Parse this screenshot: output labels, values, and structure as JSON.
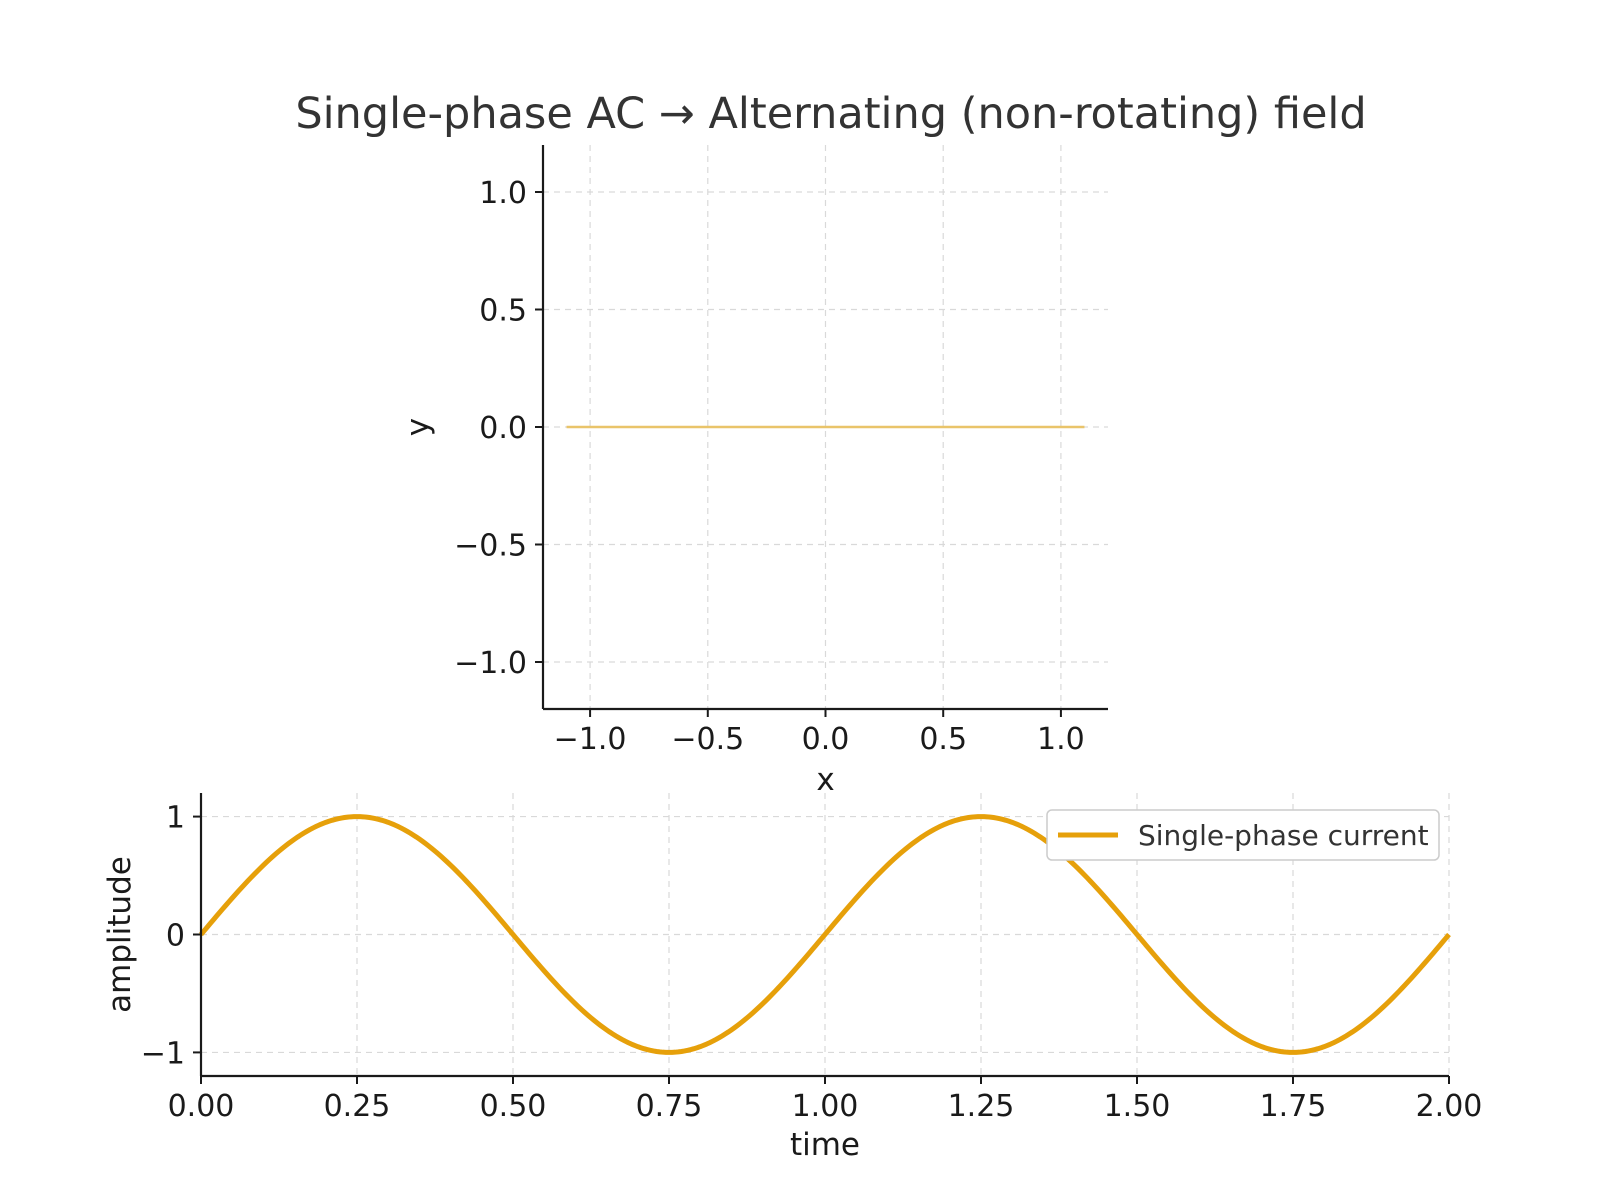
{
  "title": "Single-phase AC → Alternating (non-rotating) field",
  "colors": {
    "series": "#E6A00A",
    "field": "#E9C46A",
    "axis": "#1a1a1a",
    "grid": "#d9d9d9"
  },
  "chart_data": [
    {
      "type": "line",
      "xlabel": "x",
      "ylabel": "y",
      "xlim": [
        -1.2,
        1.2
      ],
      "ylim": [
        -1.2,
        1.2
      ],
      "xticks": [
        -1.0,
        -0.5,
        0.0,
        0.5,
        1.0
      ],
      "xtick_labels": [
        "−1.0",
        "−0.5",
        "0.0",
        "0.5",
        "1.0"
      ],
      "yticks": [
        -1.0,
        -0.5,
        0.0,
        0.5,
        1.0
      ],
      "ytick_labels": [
        "−1.0",
        "−0.5",
        "0.0",
        "0.5",
        "1.0"
      ],
      "grid": true,
      "series": [
        {
          "x": [
            -1.1,
            1.1
          ],
          "y": [
            0.0,
            0.0
          ]
        }
      ]
    },
    {
      "type": "line",
      "xlabel": "time",
      "ylabel": "amplitude",
      "xlim": [
        0.0,
        2.0
      ],
      "ylim": [
        -1.2,
        1.2
      ],
      "xticks": [
        0.0,
        0.25,
        0.5,
        0.75,
        1.0,
        1.25,
        1.5,
        1.75,
        2.0
      ],
      "xtick_labels": [
        "0.00",
        "0.25",
        "0.50",
        "0.75",
        "1.00",
        "1.25",
        "1.50",
        "1.75",
        "2.00"
      ],
      "yticks": [
        -1,
        0,
        1
      ],
      "ytick_labels": [
        "−1",
        "0",
        "1"
      ],
      "grid": true,
      "legend": "top-right",
      "series": [
        {
          "name": "Single-phase current",
          "function": "sin(2*pi*t)",
          "x": [
            0.0,
            0.125,
            0.25,
            0.375,
            0.5,
            0.625,
            0.75,
            0.875,
            1.0,
            1.125,
            1.25,
            1.375,
            1.5,
            1.625,
            1.75,
            1.875,
            2.0
          ],
          "y": [
            0.0,
            0.707,
            1.0,
            0.707,
            0.0,
            -0.707,
            -1.0,
            -0.707,
            0.0,
            0.707,
            1.0,
            0.707,
            0.0,
            -0.707,
            -1.0,
            -0.707,
            0.0
          ]
        }
      ]
    }
  ]
}
